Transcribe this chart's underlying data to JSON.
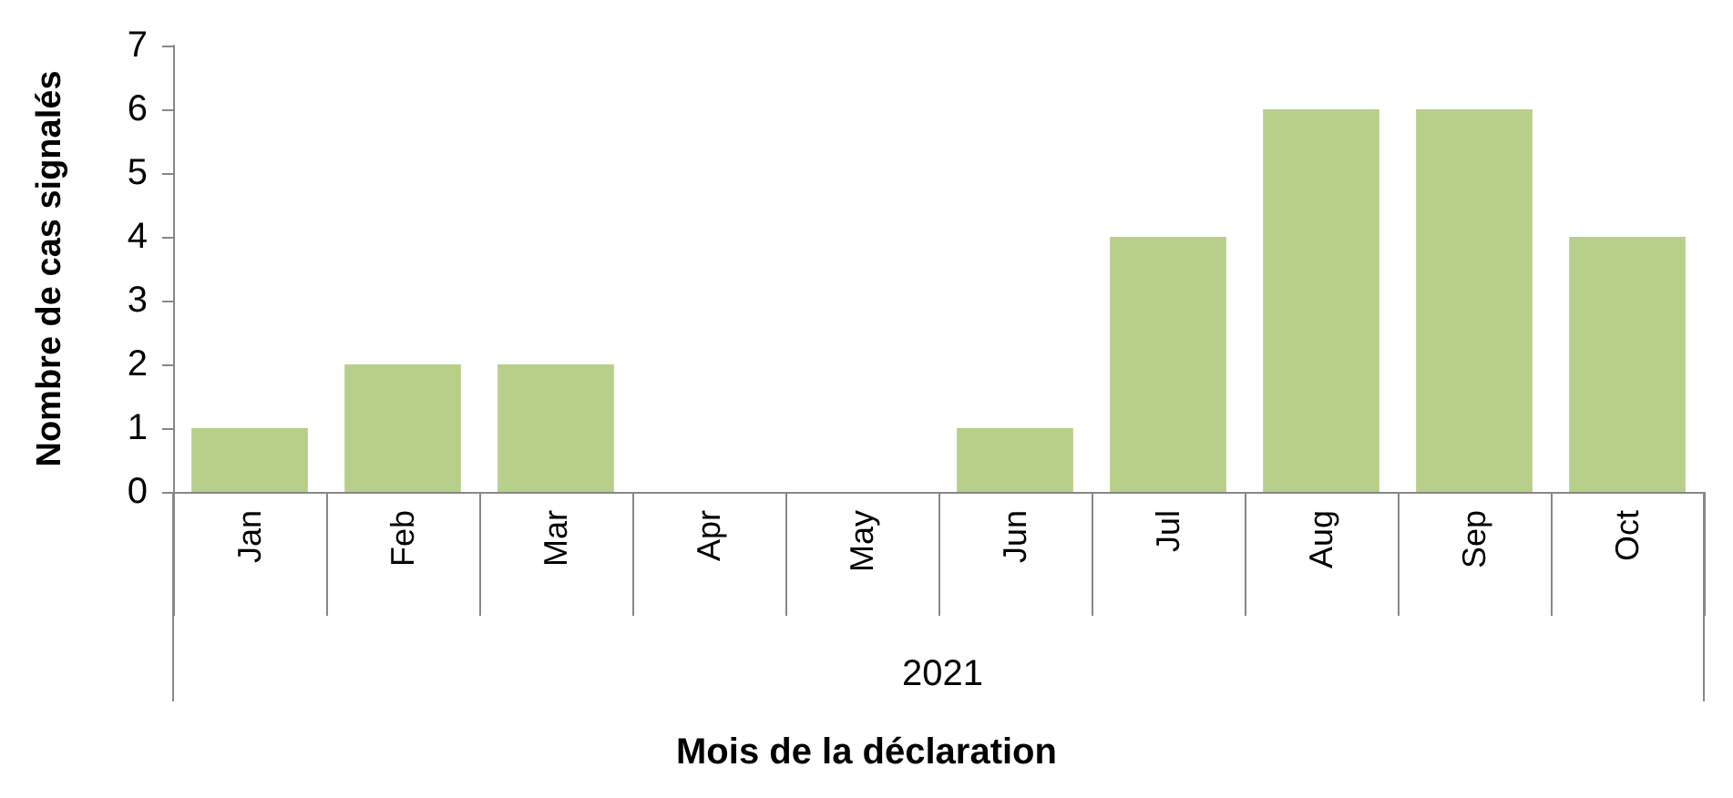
{
  "chart_data": {
    "type": "bar",
    "xlabel": "Mois de la déclaration",
    "ylabel": "Nombre de cas signalés",
    "annotations": [
      "2021"
    ],
    "categories": [
      "Jan",
      "Feb",
      "Mar",
      "Apr",
      "May",
      "Jun",
      "Jul",
      "Aug",
      "Sep",
      "Oct"
    ],
    "values": [
      1,
      2,
      2,
      0,
      0,
      1,
      4,
      6,
      6,
      4
    ],
    "color": "#b8cf8a",
    "ylim": [
      0,
      7
    ],
    "yticks": [
      0,
      1,
      2,
      3,
      4,
      5,
      6,
      7
    ],
    "grid": false
  }
}
